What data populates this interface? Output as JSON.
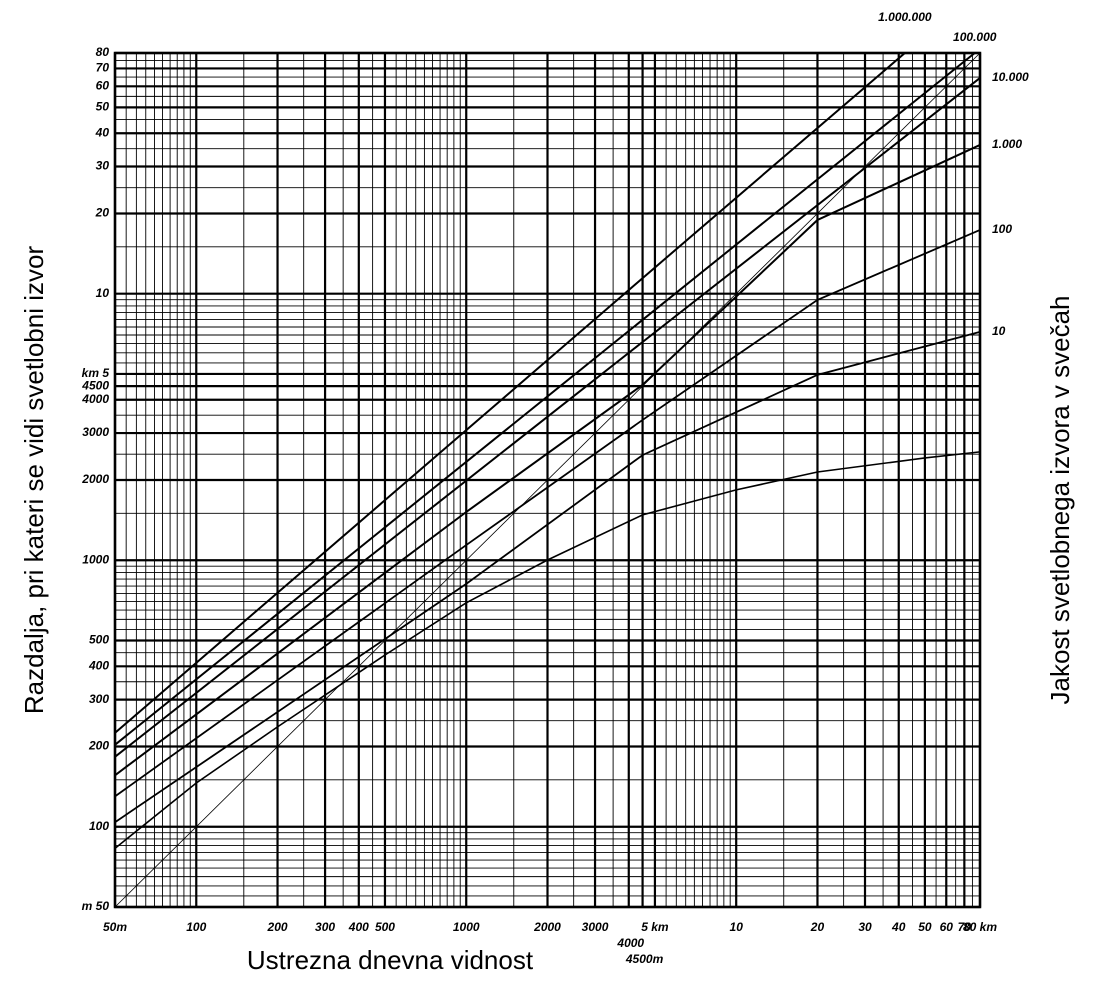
{
  "chart_data": {
    "type": "line",
    "x_label": "Ustrezna dnevna vidnost",
    "y_label": "Razdalja, pri kateri se vidi svetlobni izvor",
    "y2_label": "Jakost svetlobnega izvora v svečah",
    "xscale": "log",
    "yscale": "log",
    "xlim": [
      50,
      80000
    ],
    "ylim": [
      50,
      80000
    ],
    "grid": true,
    "minor_grid": true,
    "xticks": [
      {
        "value": 50,
        "label": "50m"
      },
      100,
      200,
      300,
      400,
      500,
      1000,
      2000,
      3000,
      4000,
      {
        "value": 4500,
        "label": "4500m"
      },
      {
        "value": 5000,
        "label": "5 km"
      },
      {
        "value": 10000,
        "label": "10"
      },
      {
        "value": 20000,
        "label": "20"
      },
      {
        "value": 30000,
        "label": "30"
      },
      {
        "value": 40000,
        "label": "40"
      },
      {
        "value": 50000,
        "label": "50"
      },
      {
        "value": 60000,
        "label": "60"
      },
      {
        "value": 70000,
        "label": "70"
      },
      {
        "value": 80000,
        "label": "80 km"
      }
    ],
    "yticks": [
      {
        "value": 50,
        "label": "m 50"
      },
      100,
      200,
      300,
      400,
      500,
      1000,
      2000,
      3000,
      4000,
      4500,
      {
        "value": 5000,
        "label": "km 5"
      },
      {
        "value": 10000,
        "label": "10"
      },
      {
        "value": 20000,
        "label": "20"
      },
      {
        "value": 30000,
        "label": "30"
      },
      {
        "value": 40000,
        "label": "40"
      },
      {
        "value": 50000,
        "label": "50"
      },
      {
        "value": 60000,
        "label": "60"
      },
      {
        "value": 70000,
        "label": "70"
      },
      {
        "value": 80000,
        "label": "80"
      }
    ],
    "series": [
      {
        "color": "#000000",
        "width": 1.6,
        "x": [
          50,
          100,
          200,
          500,
          1000,
          2000,
          4500,
          10000,
          20000,
          50000,
          80000
        ],
        "values": [
          83,
          146,
          237,
          441,
          692,
          1002,
          1480,
          1836,
          2143,
          2420,
          2550
        ]
      },
      {
        "name": "10",
        "color": "#000000",
        "width": 1.8,
        "x": [
          50,
          1000,
          4500,
          20000,
          80000
        ],
        "values": [
          104,
          815,
          2480,
          4960,
          7190
        ]
      },
      {
        "name": "100",
        "color": "#000000",
        "width": 1.8,
        "x": [
          50,
          1000,
          4500,
          20000,
          80000
        ],
        "values": [
          130,
          1140,
          3360,
          9480,
          17350
        ]
      },
      {
        "name": "1.000",
        "color": "#000000",
        "width": 2,
        "x": [
          50,
          1000,
          4500,
          20000,
          80000
        ],
        "values": [
          156,
          1517,
          4550,
          18900,
          36150
        ]
      },
      {
        "name": "10.000",
        "color": "#000000",
        "width": 2,
        "x": [
          50,
          4500,
          80000
        ],
        "values": [
          183,
          6590,
          64500
        ]
      },
      {
        "name": "100.000",
        "color": "#000000",
        "width": 2,
        "x": [
          50,
          4500,
          76500
        ],
        "values": [
          203,
          7980,
          80000
        ]
      },
      {
        "name": "1.000.000",
        "color": "#000000",
        "width": 2,
        "x": [
          50,
          4790,
          42150
        ],
        "values": [
          225,
          12080,
          80000
        ]
      },
      {
        "color": "#000000",
        "width": 0.8,
        "x": [
          50,
          80000
        ],
        "values": [
          50,
          80000
        ]
      }
    ]
  }
}
